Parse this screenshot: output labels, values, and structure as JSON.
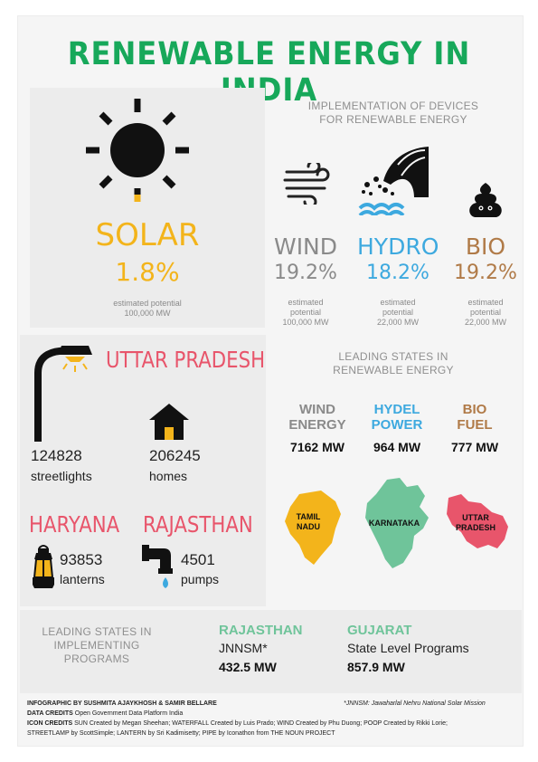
{
  "title": "RENEWABLE ENERGY IN INDIA",
  "colors": {
    "title_green": "#17a85a",
    "solar_yellow": "#f3b41b",
    "wind_gray": "#8a8a8a",
    "hydro_blue": "#3da9df",
    "bio_brown": "#b07a47",
    "state_red": "#e8556b",
    "kn_green": "#6fc49a",
    "lantern": "#f3b41b"
  },
  "solar": {
    "label": "SOLAR",
    "percent": "1.8%",
    "potential_label": "estimated potential",
    "potential_value": "100,000 MW"
  },
  "devices": {
    "heading_line1": "IMPLEMENTATION OF DEVICES",
    "heading_line2": "FOR RENEWABLE ENERGY",
    "items": [
      {
        "label": "WIND",
        "percent": "19.2%",
        "potential_label1": "estimated",
        "potential_label2": "potential",
        "potential_value": "100,000 MW",
        "icon": "wind-icon"
      },
      {
        "label": "HYDRO",
        "percent": "18.2%",
        "potential_label1": "estimated",
        "potential_label2": "potential",
        "potential_value": "22,000 MW",
        "icon": "waterfall-icon"
      },
      {
        "label": "BIO",
        "percent": "19.2%",
        "potential_label1": "estimated",
        "potential_label2": "potential",
        "potential_value": "22,000 MW",
        "icon": "poop-icon"
      }
    ]
  },
  "uttar_pradesh": {
    "label": "UTTAR PRADESH",
    "streetlights_value": "124828",
    "streetlights_label": "streetlights",
    "homes_value": "206245",
    "homes_label": "homes"
  },
  "haryana": {
    "label": "HARYANA",
    "value": "93853",
    "unit": "lanterns"
  },
  "rajasthan": {
    "label": "RAJASTHAN",
    "value": "4501",
    "unit": "pumps"
  },
  "leading_renewable": {
    "heading_line1": "LEADING STATES IN",
    "heading_line2": "RENEWABLE ENERGY",
    "items": [
      {
        "line1": "WIND",
        "line2": "ENERGY",
        "value": "7162 MW",
        "state_line1": "TAMIL",
        "state_line2": "NADU"
      },
      {
        "line1": "HYDEL",
        "line2": "POWER",
        "value": "964 MW",
        "state_line1": "KARNATAKA",
        "state_line2": ""
      },
      {
        "line1": "BIO",
        "line2": "FUEL",
        "value": "777 MW",
        "state_line1": "UTTAR",
        "state_line2": "PRADESH"
      }
    ]
  },
  "leading_programs": {
    "heading_line1": "LEADING STATES IN",
    "heading_line2": "IMPLEMENTING",
    "heading_line3": "PROGRAMS",
    "items": [
      {
        "state": "RAJASTHAN",
        "program": "JNNSM*",
        "value": "432.5 MW"
      },
      {
        "state": "GUJARAT",
        "program": "State Level Programs",
        "value": "857.9 MW"
      }
    ]
  },
  "credits": {
    "infographic_by": "INFOGRAPHIC BY SUSHMITA AJAYKHOSH & SAMIR BELLARE",
    "data_label": "DATA CREDITS",
    "data_value": "Open Government Data Platform India",
    "icon_label": "ICON CREDITS",
    "icon_value_line1": "SUN Created by Megan Sheehan; WATERFALL Created by Luis Prado; WIND Created by Phu Duong; POOP Created by Rikki Lorie;",
    "icon_value_line2": "STREETLAMP by ScottSimple; LANTERN by Sri Kadimisetty; PIPE by Iconathon from THE NOUN PROJECT",
    "footnote": "*JNNSM: Jawaharlal Nehru National Solar Mission"
  }
}
